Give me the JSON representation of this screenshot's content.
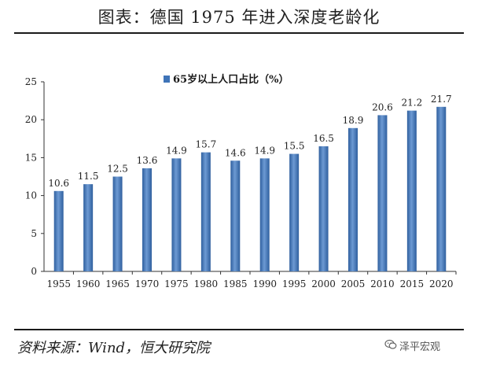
{
  "header": {
    "title": "图表：德国 1975 年进入深度老龄化"
  },
  "footer": {
    "source": "资料来源：Wind，恒大研究院",
    "watermark": "泽平宏观"
  },
  "icons": {
    "watermark_icon": "wechat-icon"
  },
  "colors": {
    "bar": "#3f74b8",
    "bar_highlight": "#6d9ad3"
  },
  "chart_data": {
    "type": "bar",
    "title": "",
    "xlabel": "",
    "ylabel": "",
    "ylim": [
      0,
      25
    ],
    "yticks": [
      "0",
      "5",
      "10",
      "15",
      "20",
      "25"
    ],
    "legend": {
      "label": "65岁以上人口占比（%）",
      "position": "top"
    },
    "categories": [
      "1955",
      "1960",
      "1965",
      "1970",
      "1975",
      "1980",
      "1985",
      "1990",
      "1995",
      "2000",
      "2005",
      "2010",
      "2015",
      "2020"
    ],
    "series": [
      {
        "name": "65岁以上人口占比（%）",
        "values": [
          10.6,
          11.5,
          12.5,
          13.6,
          14.9,
          15.7,
          14.6,
          14.9,
          15.5,
          16.5,
          18.9,
          20.6,
          21.2,
          21.7
        ],
        "labels": [
          "10.6",
          "11.5",
          "12.5",
          "13.6",
          "14.9",
          "15.7",
          "14.6",
          "14.9",
          "15.5",
          "16.5",
          "18.9",
          "20.6",
          "21.2",
          "21.7"
        ]
      }
    ]
  }
}
